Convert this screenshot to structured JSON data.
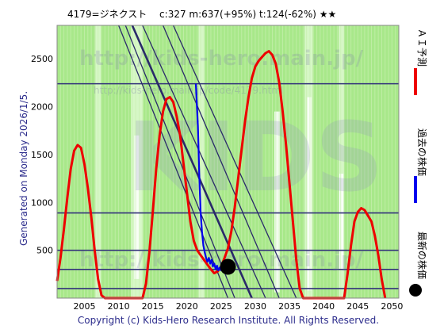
{
  "header": {
    "title": "4179=ジネクスト　 c:327  m:637(+95%)  t:124(-62%)  ★★"
  },
  "side_text": "Generated on Monday 2026/1/5.",
  "footer": {
    "copyright": "Copyright (c) Kids-Hero Research Institute. All Rights Reserved."
  },
  "watermarks": [
    "http://kids-hero.main.jp/",
    "http://kids-hero.main.jp/code/4179.html",
    "KIDS",
    "http://kids-hero.main.jp/"
  ],
  "legend": [
    {
      "label": "ＡＩ予測",
      "color": "#ee0000",
      "marker": "line"
    },
    {
      "label": "過去の株価",
      "color": "#0000ee",
      "marker": "line"
    },
    {
      "label": "最新の株価",
      "color": "#000000",
      "marker": "dot"
    }
  ],
  "colors": {
    "background_green": "#a8e88a",
    "stripe_light": "#d6f7c6",
    "white_band": "#ffffff",
    "gridline": "#33337a",
    "prediction": "#ee0000",
    "history": "#0000ee",
    "trend": "#2a2a6a"
  },
  "chart_data": {
    "type": "line",
    "title": "4179=ジネクスト　 c:327  m:637(+95%)  t:124(-62%)  ★★",
    "xlim": [
      2001,
      2051
    ],
    "ylim": [
      0,
      2850
    ],
    "x_ticks": [
      2005,
      2010,
      2015,
      2020,
      2025,
      2030,
      2035,
      2040,
      2045,
      2050
    ],
    "y_ticks": [
      500,
      1000,
      1500,
      2000,
      2500
    ],
    "horizontal_levels": [
      100,
      300,
      500,
      890,
      2240
    ],
    "series": [
      {
        "name": "ＡＩ予測",
        "color": "#ee0000",
        "points": [
          [
            2001.0,
            180
          ],
          [
            2001.5,
            420
          ],
          [
            2002.0,
            720
          ],
          [
            2002.5,
            1050
          ],
          [
            2003.0,
            1350
          ],
          [
            2003.5,
            1540
          ],
          [
            2004.0,
            1600
          ],
          [
            2004.5,
            1570
          ],
          [
            2005.0,
            1400
          ],
          [
            2005.5,
            1150
          ],
          [
            2006.0,
            850
          ],
          [
            2006.5,
            500
          ],
          [
            2007.0,
            200
          ],
          [
            2007.5,
            30
          ],
          [
            2008.0,
            0
          ],
          [
            2013.5,
            0
          ],
          [
            2014.0,
            150
          ],
          [
            2014.5,
            480
          ],
          [
            2015.0,
            900
          ],
          [
            2015.5,
            1350
          ],
          [
            2016.0,
            1700
          ],
          [
            2016.5,
            1950
          ],
          [
            2017.0,
            2080
          ],
          [
            2017.5,
            2100
          ],
          [
            2018.0,
            2050
          ],
          [
            2018.5,
            1900
          ],
          [
            2019.0,
            1700
          ],
          [
            2019.5,
            1400
          ],
          [
            2020.0,
            1100
          ],
          [
            2020.5,
            800
          ],
          [
            2021.0,
            600
          ],
          [
            2021.5,
            500
          ],
          [
            2022.0,
            450
          ],
          [
            2022.5,
            400
          ],
          [
            2023.0,
            350
          ],
          [
            2023.5,
            300
          ],
          [
            2024.0,
            260
          ],
          [
            2024.5,
            280
          ],
          [
            2025.0,
            330
          ],
          [
            2025.5,
            420
          ],
          [
            2026.0,
            520
          ],
          [
            2026.5,
            700
          ],
          [
            2027.0,
            950
          ],
          [
            2027.5,
            1250
          ],
          [
            2028.0,
            1550
          ],
          [
            2028.5,
            1850
          ],
          [
            2029.0,
            2100
          ],
          [
            2029.5,
            2300
          ],
          [
            2030.0,
            2420
          ],
          [
            2030.5,
            2480
          ],
          [
            2031.0,
            2520
          ],
          [
            2031.5,
            2560
          ],
          [
            2032.0,
            2580
          ],
          [
            2032.5,
            2540
          ],
          [
            2033.0,
            2450
          ],
          [
            2033.5,
            2250
          ],
          [
            2034.0,
            1950
          ],
          [
            2034.5,
            1600
          ],
          [
            2035.0,
            1200
          ],
          [
            2035.5,
            800
          ],
          [
            2036.0,
            400
          ],
          [
            2036.5,
            100
          ],
          [
            2037.0,
            0
          ],
          [
            2043.0,
            0
          ],
          [
            2043.5,
            250
          ],
          [
            2044.0,
            550
          ],
          [
            2044.5,
            800
          ],
          [
            2045.0,
            900
          ],
          [
            2045.5,
            940
          ],
          [
            2046.0,
            920
          ],
          [
            2046.5,
            860
          ],
          [
            2047.0,
            800
          ],
          [
            2047.5,
            650
          ],
          [
            2048.0,
            450
          ],
          [
            2048.5,
            200
          ],
          [
            2049.0,
            0
          ]
        ]
      },
      {
        "name": "過去の株価",
        "color": "#0000ee",
        "points": [
          [
            2021.3,
            2240
          ],
          [
            2021.6,
            1800
          ],
          [
            2021.8,
            1300
          ],
          [
            2022.0,
            900
          ],
          [
            2022.2,
            700
          ],
          [
            2022.4,
            550
          ],
          [
            2022.6,
            480
          ],
          [
            2022.8,
            420
          ],
          [
            2023.0,
            380
          ],
          [
            2023.2,
            420
          ],
          [
            2023.4,
            360
          ],
          [
            2023.6,
            400
          ],
          [
            2023.8,
            330
          ],
          [
            2024.0,
            360
          ],
          [
            2024.2,
            300
          ],
          [
            2024.4,
            340
          ],
          [
            2024.6,
            290
          ],
          [
            2024.8,
            320
          ],
          [
            2025.0,
            290
          ],
          [
            2025.2,
            330
          ],
          [
            2025.5,
            310
          ],
          [
            2025.8,
            327
          ]
        ]
      }
    ],
    "latest_point": {
      "x": 2026.0,
      "y": 327
    },
    "trend_lines": [
      [
        [
          2010.0,
          2850
        ],
        [
          2026.0,
          0
        ]
      ],
      [
        [
          2011.0,
          2850
        ],
        [
          2027.0,
          0
        ]
      ],
      [
        [
          2012.0,
          2850
        ],
        [
          2029.5,
          0
        ]
      ],
      [
        [
          2013.5,
          2850
        ],
        [
          2031.5,
          0
        ]
      ],
      [
        [
          2016.5,
          2850
        ],
        [
          2033.5,
          0
        ]
      ],
      [
        [
          2018.0,
          2850
        ],
        [
          2036.0,
          0
        ]
      ]
    ]
  }
}
